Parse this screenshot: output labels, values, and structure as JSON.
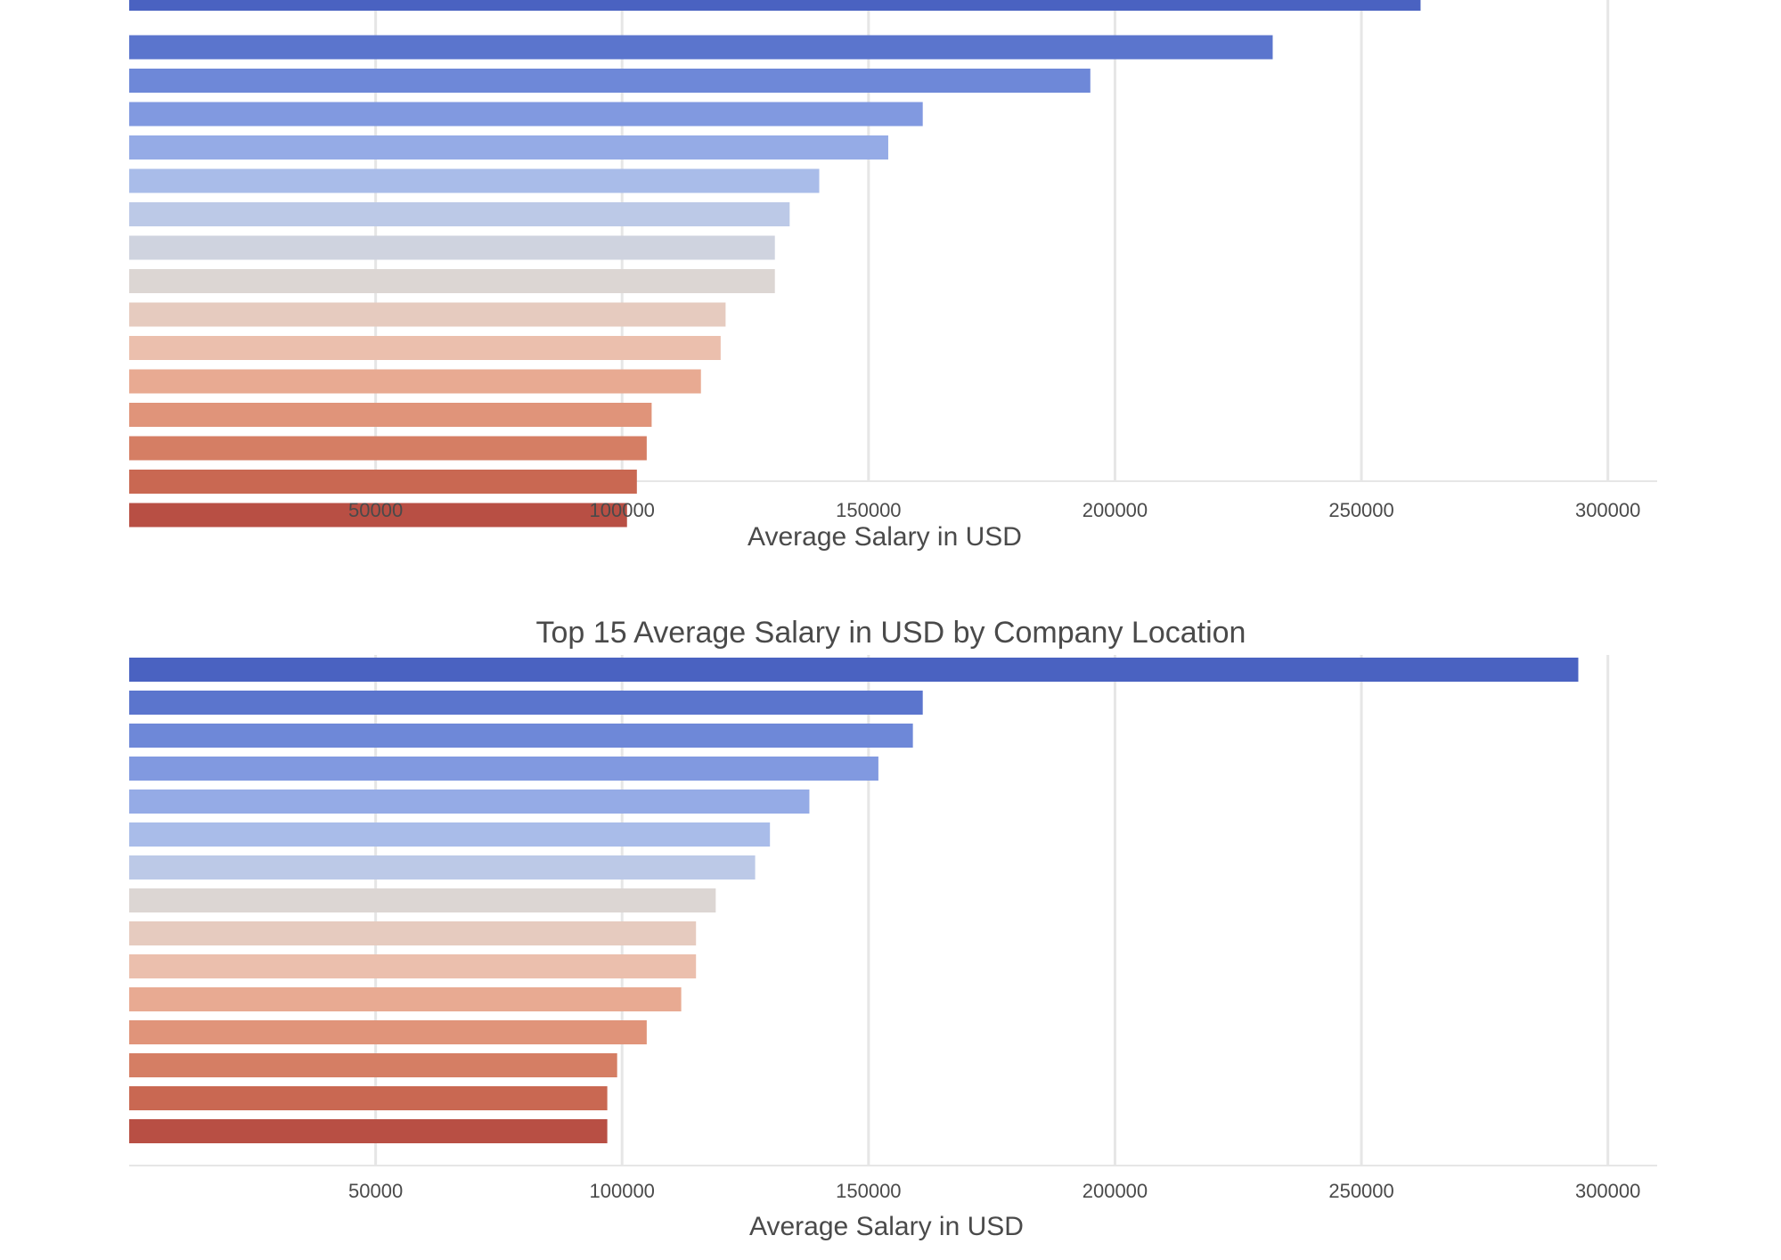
{
  "chart_data": [
    {
      "type": "bar",
      "orientation": "horizontal",
      "title": "",
      "xlabel": "Average Salary in USD",
      "ylabel": "",
      "xlim": [
        0,
        310000
      ],
      "xticks": [
        50000,
        100000,
        150000,
        200000,
        250000,
        300000
      ],
      "grid": "vertical",
      "legend": "none",
      "values": [
        262000,
        232000,
        195000,
        161000,
        154000,
        140000,
        134000,
        131000,
        131000,
        121000,
        120000,
        116000,
        106000,
        105000,
        103000,
        101000
      ],
      "note_values_top_cut_off": true
    },
    {
      "type": "bar",
      "orientation": "horizontal",
      "title": "Top 15 Average Salary in USD by Company Location",
      "xlabel": "Average Salary in USD",
      "ylabel": "",
      "xlim": [
        0,
        310000
      ],
      "xticks": [
        50000,
        100000,
        150000,
        200000,
        250000,
        300000
      ],
      "grid": "vertical",
      "legend": "none",
      "values": [
        294000,
        161000,
        159000,
        152000,
        138000,
        130000,
        127000,
        119000,
        115000,
        115000,
        112000,
        105000,
        99000,
        97000,
        97000
      ]
    }
  ],
  "colors": {
    "palette": [
      "#4a62c1",
      "#5b75cd",
      "#6e88d8",
      "#8199e0",
      "#95abe6",
      "#a9bce9",
      "#bcc9e7",
      "#cfd3df",
      "#dcd6d3",
      "#e6cbbf",
      "#ebbfad",
      "#e8aa92",
      "#e0947a",
      "#d57e64",
      "#c96852",
      "#b84f44"
    ],
    "gridline": "#e6e6e6",
    "text": "#4a4a4a"
  }
}
